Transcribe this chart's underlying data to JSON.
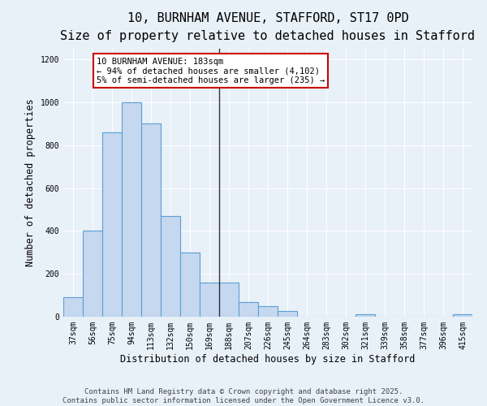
{
  "title": "10, BURNHAM AVENUE, STAFFORD, ST17 0PD",
  "subtitle": "Size of property relative to detached houses in Stafford",
  "xlabel": "Distribution of detached houses by size in Stafford",
  "ylabel": "Number of detached properties",
  "categories": [
    "37sqm",
    "56sqm",
    "75sqm",
    "94sqm",
    "113sqm",
    "132sqm",
    "150sqm",
    "169sqm",
    "188sqm",
    "207sqm",
    "226sqm",
    "245sqm",
    "264sqm",
    "283sqm",
    "302sqm",
    "321sqm",
    "339sqm",
    "358sqm",
    "377sqm",
    "396sqm",
    "415sqm"
  ],
  "values": [
    90,
    400,
    860,
    1000,
    900,
    470,
    300,
    160,
    160,
    70,
    50,
    25,
    0,
    0,
    0,
    10,
    0,
    0,
    0,
    0,
    10
  ],
  "bar_color": "#c5d8f0",
  "bar_edge_color": "#5a9fd4",
  "annotation_text": "10 BURNHAM AVENUE: 183sqm\n← 94% of detached houses are smaller (4,102)\n5% of semi-detached houses are larger (235) →",
  "annotation_box_color": "#ffffff",
  "annotation_box_edge": "#cc0000",
  "vline_color": "#333333",
  "ylim": [
    0,
    1250
  ],
  "yticks": [
    0,
    200,
    400,
    600,
    800,
    1000,
    1200
  ],
  "background_color": "#e8f0f8",
  "grid_color": "#ffffff",
  "footer_text": "Contains HM Land Registry data © Crown copyright and database right 2025.\nContains public sector information licensed under the Open Government Licence v3.0.",
  "title_fontsize": 11,
  "subtitle_fontsize": 9.5,
  "label_fontsize": 8.5,
  "tick_fontsize": 7,
  "footer_fontsize": 6.5,
  "annotation_fontsize": 7.5
}
